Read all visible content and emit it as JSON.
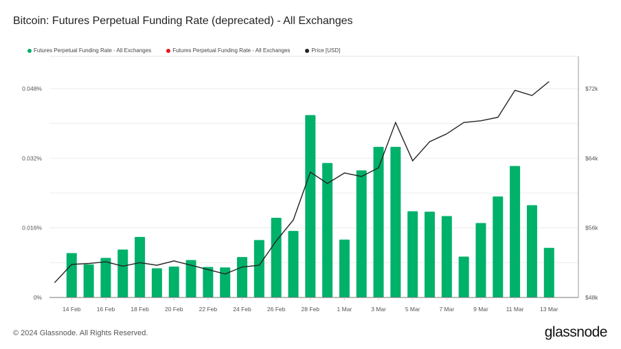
{
  "title": "Bitcoin: Futures Perpetual Funding Rate (deprecated) - All Exchanges",
  "footer": "© 2024 Glassnode. All Rights Reserved.",
  "logo": "glassnode",
  "colors": {
    "positive": "#00b16a",
    "negative": "#e8151b",
    "price": "#222222",
    "grid": "#ececec"
  },
  "chart_data": {
    "type": "bar",
    "legend": [
      {
        "name": "Futures Perpetual Funding Rate - All Exchanges",
        "color": "#00b16a"
      },
      {
        "name": "Futures Perpetual Funding Rate - All Exchanges",
        "color": "#e8151b"
      },
      {
        "name": "Price [USD]",
        "color": "#222222"
      }
    ],
    "legend_position": "top-left",
    "grid": true,
    "x_tick_labels": [
      "14 Feb",
      "16 Feb",
      "18 Feb",
      "20 Feb",
      "22 Feb",
      "24 Feb",
      "26 Feb",
      "28 Feb",
      "1 Mar",
      "3 Mar",
      "5 Mar",
      "7 Mar",
      "9 Mar",
      "11 Mar",
      "13 Mar"
    ],
    "y_left": {
      "ticks": [
        0,
        0.016,
        0.032,
        0.048
      ],
      "tick_labels": [
        "0%",
        "0.016%",
        "0.032%",
        "0.048%"
      ],
      "range": [
        0,
        0.0554
      ],
      "unit": "%"
    },
    "y_right": {
      "ticks": [
        48,
        56,
        64,
        72
      ],
      "tick_labels": [
        "$48k",
        "$56k",
        "$64k",
        "$72k"
      ],
      "range": [
        48,
        75.7
      ],
      "unit": "k USD"
    },
    "funding_rate": {
      "name": "Futures Perpetual Funding Rate - All Exchanges",
      "dates": [
        "2024-02-14",
        "2024-02-15",
        "2024-02-16",
        "2024-02-17",
        "2024-02-18",
        "2024-02-19",
        "2024-02-20",
        "2024-02-21",
        "2024-02-22",
        "2024-02-23",
        "2024-02-24",
        "2024-02-25",
        "2024-02-26",
        "2024-02-27",
        "2024-02-28",
        "2024-02-29",
        "2024-03-01",
        "2024-03-02",
        "2024-03-03",
        "2024-03-04",
        "2024-03-05",
        "2024-03-06",
        "2024-03-07",
        "2024-03-08",
        "2024-03-09",
        "2024-03-10",
        "2024-03-11",
        "2024-03-12",
        "2024-03-13"
      ],
      "values": [
        0.0102,
        0.0076,
        0.0091,
        0.011,
        0.0139,
        0.0067,
        0.0071,
        0.0086,
        0.007,
        0.0069,
        0.0093,
        0.0132,
        0.0183,
        0.0153,
        0.0419,
        0.0309,
        0.0133,
        0.0292,
        0.0346,
        0.0346,
        0.0198,
        0.0197,
        0.0187,
        0.0094,
        0.0171,
        0.0232,
        0.0302,
        0.0212,
        0.0114
      ]
    },
    "price": {
      "name": "Price [USD]",
      "dates": [
        "2024-02-13",
        "2024-02-14",
        "2024-02-15",
        "2024-02-16",
        "2024-02-17",
        "2024-02-18",
        "2024-02-19",
        "2024-02-20",
        "2024-02-21",
        "2024-02-22",
        "2024-02-23",
        "2024-02-24",
        "2024-02-25",
        "2024-02-26",
        "2024-02-27",
        "2024-02-28",
        "2024-02-29",
        "2024-03-01",
        "2024-03-02",
        "2024-03-03",
        "2024-03-04",
        "2024-03-05",
        "2024-03-06",
        "2024-03-07",
        "2024-03-08",
        "2024-03-09",
        "2024-03-10",
        "2024-03-11",
        "2024-03-12",
        "2024-03-13"
      ],
      "values_k": [
        49.7,
        51.8,
        51.9,
        52.1,
        51.6,
        52.0,
        51.7,
        52.2,
        51.7,
        51.2,
        50.7,
        51.5,
        51.7,
        54.5,
        56.9,
        62.4,
        61.1,
        62.3,
        61.9,
        62.9,
        68.1,
        63.7,
        65.9,
        66.8,
        68.1,
        68.3,
        68.7,
        71.8,
        71.2,
        72.8
      ]
    }
  }
}
